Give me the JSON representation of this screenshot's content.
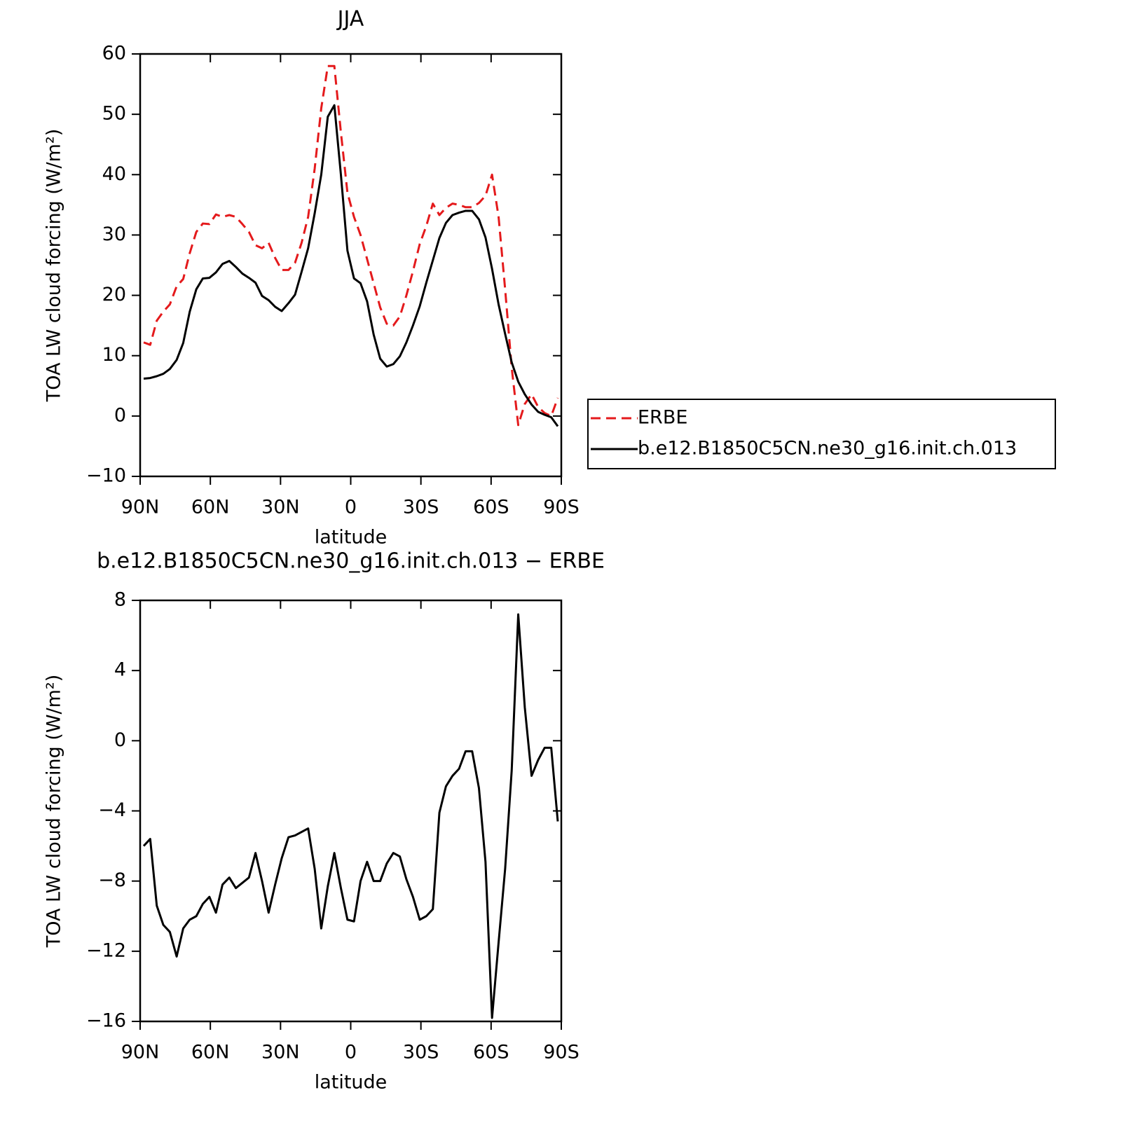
{
  "chart_data": [
    {
      "type": "line",
      "title": "JJA",
      "xlabel": "latitude",
      "ylabel": "TOA LW cloud forcing (W/m²)",
      "x": [
        88.5,
        85.7,
        82.9,
        80.1,
        77.3,
        74.4,
        71.6,
        68.8,
        66.0,
        63.2,
        60.4,
        57.6,
        54.8,
        51.9,
        49.1,
        46.3,
        43.5,
        40.7,
        37.9,
        35.1,
        32.3,
        29.5,
        26.6,
        23.8,
        21.0,
        18.2,
        15.4,
        12.6,
        9.8,
        7.0,
        4.2,
        1.4,
        -1.4,
        -4.2,
        -7.0,
        -9.8,
        -12.6,
        -15.4,
        -18.2,
        -21.0,
        -23.8,
        -26.6,
        -29.5,
        -32.3,
        -35.1,
        -37.9,
        -40.7,
        -43.5,
        -46.3,
        -49.1,
        -51.9,
        -54.8,
        -57.6,
        -60.4,
        -63.2,
        -66.0,
        -68.8,
        -71.6,
        -74.4,
        -77.3,
        -80.1,
        -82.9,
        -85.7,
        -88.5
      ],
      "series": [
        {
          "name": "ERBE",
          "color": "#e41a1c",
          "style": "dashed",
          "values": [
            12.2,
            11.8,
            15.8,
            17.3,
            18.5,
            21.5,
            22.7,
            27.0,
            30.5,
            31.9,
            31.8,
            33.4,
            33.0,
            33.3,
            33.0,
            31.8,
            30.5,
            28.3,
            27.8,
            28.7,
            26.2,
            24.2,
            24.2,
            25.4,
            28.7,
            33.0,
            41.0,
            51.0,
            58.0,
            58.0,
            47.0,
            37.0,
            33.0,
            30.0,
            26.0,
            22.0,
            18.0,
            15.3,
            15.0,
            16.5,
            20.0,
            24.0,
            28.5,
            31.5,
            35.2,
            33.3,
            34.5,
            35.2,
            35.0,
            34.6,
            34.6,
            35.3,
            36.5,
            40.0,
            33.0,
            21.0,
            8.0,
            -1.5,
            2.0,
            3.6,
            1.5,
            0.5,
            0.0,
            3.0
          ]
        },
        {
          "name": "b.e12.B1850C5CN.ne30_g16.init.ch.013",
          "color": "#000000",
          "style": "solid",
          "values": [
            6.2,
            6.3,
            6.6,
            7.0,
            7.8,
            9.3,
            12.1,
            17.3,
            21.0,
            22.8,
            22.9,
            23.8,
            25.2,
            25.7,
            24.7,
            23.6,
            22.9,
            22.1,
            19.9,
            19.2,
            18.1,
            17.4,
            18.7,
            20.1,
            23.9,
            27.8,
            33.6,
            40.0,
            49.6,
            51.5,
            40.0,
            27.4,
            22.8,
            22.0,
            19.0,
            13.5,
            9.5,
            8.2,
            8.6,
            9.9,
            12.2,
            15.0,
            18.2,
            22.1,
            25.8,
            29.5,
            32.0,
            33.3,
            33.7,
            34.0,
            34.0,
            32.6,
            29.6,
            24.4,
            18.5,
            13.6,
            8.9,
            5.7,
            3.6,
            1.9,
            0.7,
            0.2,
            -0.2,
            -1.7
          ]
        }
      ],
      "xlim": [
        90,
        -90
      ],
      "xticks": [
        {
          "value": 90,
          "label": "90N"
        },
        {
          "value": 60,
          "label": "60N"
        },
        {
          "value": 30,
          "label": "30N"
        },
        0,
        {
          "value": -30,
          "label": "30S"
        },
        {
          "value": -60,
          "label": "60S"
        },
        {
          "value": -90,
          "label": "90S"
        }
      ],
      "ylim": [
        -10,
        60
      ],
      "yticks": [
        {
          "value": -10,
          "label": "−10"
        },
        0,
        10,
        20,
        30,
        40,
        50,
        60
      ],
      "legend": "right"
    },
    {
      "type": "line",
      "title": "b.e12.B1850C5CN.ne30_g16.init.ch.013 − ERBE",
      "xlabel": "latitude",
      "ylabel": "TOA LW cloud forcing (W/m²)",
      "x": [
        88.5,
        85.7,
        82.9,
        80.1,
        77.3,
        74.4,
        71.6,
        68.8,
        66.0,
        63.2,
        60.4,
        57.6,
        54.8,
        51.9,
        49.1,
        46.3,
        43.5,
        40.7,
        37.9,
        35.1,
        32.3,
        29.5,
        26.6,
        23.8,
        21.0,
        18.2,
        15.4,
        12.6,
        9.8,
        7.0,
        4.2,
        1.4,
        -1.4,
        -4.2,
        -7.0,
        -9.8,
        -12.6,
        -15.4,
        -18.2,
        -21.0,
        -23.8,
        -26.6,
        -29.5,
        -32.3,
        -35.1,
        -37.9,
        -40.7,
        -43.5,
        -46.3,
        -49.1,
        -51.9,
        -54.8,
        -57.6,
        -60.4,
        -63.2,
        -66.0,
        -68.8,
        -71.6,
        -74.4,
        -77.3,
        -80.1,
        -82.9,
        -85.7,
        -88.5
      ],
      "color": "#000000",
      "values": [
        -6.0,
        -5.6,
        -9.4,
        -10.5,
        -10.9,
        -12.3,
        -10.7,
        -10.2,
        -10.0,
        -9.3,
        -8.9,
        -9.8,
        -8.2,
        -7.8,
        -8.4,
        -8.1,
        -7.8,
        -6.4,
        -8.0,
        -9.8,
        -8.2,
        -6.7,
        -5.5,
        -5.4,
        -5.2,
        -5.0,
        -7.3,
        -10.7,
        -8.3,
        -6.4,
        -8.4,
        -10.2,
        -10.3,
        -8.0,
        -6.9,
        -8.0,
        -8.0,
        -7.0,
        -6.4,
        -6.6,
        -7.9,
        -8.9,
        -10.2,
        -10.0,
        -9.6,
        -4.1,
        -2.6,
        -2.0,
        -1.6,
        -0.6,
        -0.6,
        -2.7,
        -6.9,
        -15.8,
        -11.5,
        -7.3,
        -1.7,
        7.2,
        1.9,
        -2.0,
        -1.1,
        -0.4,
        -0.4,
        -4.6
      ],
      "xlim": [
        90,
        -90
      ],
      "xticks": [
        {
          "value": 90,
          "label": "90N"
        },
        {
          "value": 60,
          "label": "60N"
        },
        {
          "value": 30,
          "label": "30N"
        },
        0,
        {
          "value": -30,
          "label": "30S"
        },
        {
          "value": -60,
          "label": "60S"
        },
        {
          "value": -90,
          "label": "90S"
        }
      ],
      "ylim": [
        -16,
        8
      ],
      "yticks": [
        {
          "value": -16,
          "label": "−16"
        },
        {
          "value": -12,
          "label": "−12"
        },
        {
          "value": -8,
          "label": "−8"
        },
        {
          "value": -4,
          "label": "−4"
        },
        0,
        4,
        8
      ]
    }
  ]
}
